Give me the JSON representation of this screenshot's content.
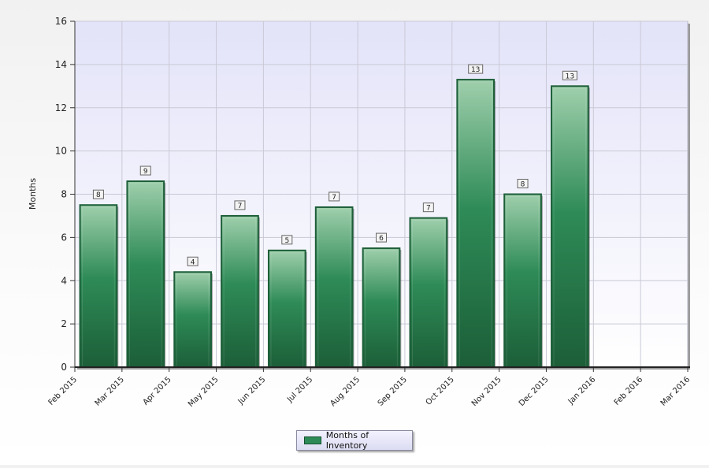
{
  "chart_data": {
    "type": "bar",
    "categories": [
      "Feb 2015",
      "Mar 2015",
      "Apr 2015",
      "May 2015",
      "Jun 2015",
      "Jul 2015",
      "Aug 2015",
      "Sep 2015",
      "Oct 2015",
      "Nov 2015",
      "Dec 2015",
      "Jan 2016",
      "Feb 2016",
      "Mar 2016"
    ],
    "series": [
      {
        "name": "Months of Inventory",
        "values": [
          null,
          7.5,
          8.6,
          4.4,
          7.0,
          5.4,
          7.4,
          5.5,
          6.9,
          13.3,
          8.0,
          13.0,
          null,
          null
        ],
        "labels": [
          "",
          "8",
          "9",
          "4",
          "7",
          "5",
          "7",
          "6",
          "7",
          "13",
          "8",
          "13",
          "",
          ""
        ]
      }
    ],
    "ylabel": "Months",
    "xlabel": "",
    "ylim": [
      0,
      16
    ],
    "yticks": [
      0,
      2,
      4,
      6,
      8,
      10,
      12,
      14,
      16
    ],
    "grid": true,
    "legend": "bottom-center",
    "colors": {
      "bar": "#2e8b57",
      "bar_dark": "#1c5e38",
      "bar_light": "#9fcfac",
      "plot_bg_top": "#e3e3f9",
      "plot_bg_bottom": "#ffffff"
    }
  },
  "legend": {
    "label": "Months of Inventory"
  }
}
